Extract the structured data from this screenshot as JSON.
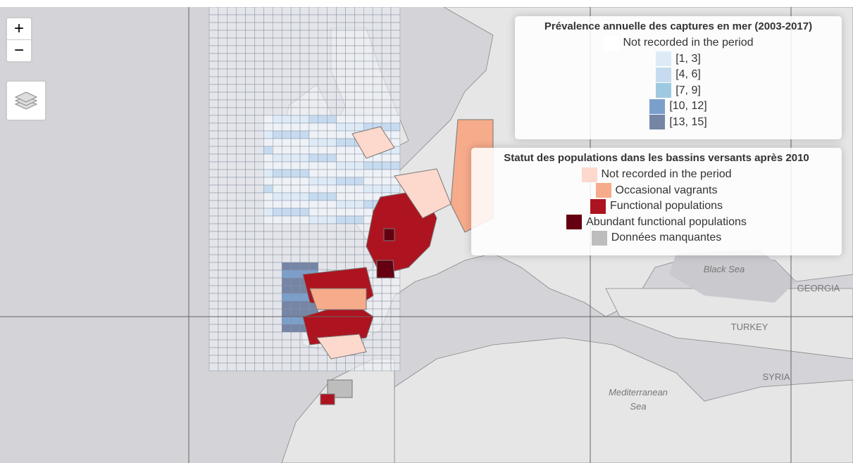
{
  "controls": {
    "zoom_in": "+",
    "zoom_out": "−"
  },
  "legends": [
    {
      "title": "Prévalence annuelle des captures en mer (2003-2017)",
      "items": [
        {
          "label": "Not recorded in the period",
          "color": "#ffffff"
        },
        {
          "label": "[1, 3]",
          "color": "#deebf7"
        },
        {
          "label": "[4, 6]",
          "color": "#c6dbef"
        },
        {
          "label": "[7, 9]",
          "color": "#9ecae1"
        },
        {
          "label": "[10, 12]",
          "color": "#7b9fcb"
        },
        {
          "label": "[13, 15]",
          "color": "#7585a6"
        }
      ]
    },
    {
      "title": "Statut des populations dans les bassins versants après 2010",
      "items": [
        {
          "label": "Not recorded in the period",
          "color": "#fcd9cc"
        },
        {
          "label": "Occasional vagrants",
          "color": "#f6ab8a"
        },
        {
          "label": "Functional populations",
          "color": "#ad1420"
        },
        {
          "label": "Abundant functional populations",
          "color": "#640010"
        },
        {
          "label": "Données manquantes",
          "color": "#bdbdbd"
        }
      ]
    }
  ],
  "map_labels": [
    "Black Sea",
    "GEORGIA",
    "TURKEY",
    "SYRIA",
    "Mediterranean",
    "Sea"
  ]
}
